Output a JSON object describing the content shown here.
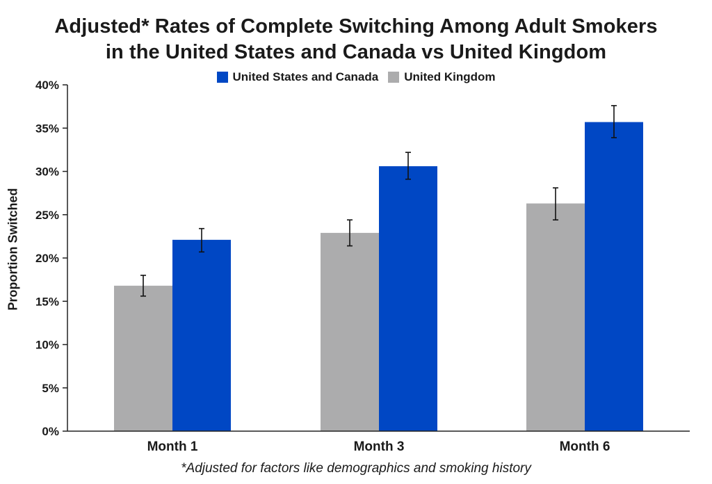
{
  "chart_data": {
    "type": "bar",
    "title": [
      "Adjusted* Rates of Complete Switching Among Adult Smokers",
      "in the United States and Canada vs United Kingdom"
    ],
    "ylabel": "Proportion Switched",
    "xlabel": "",
    "footnote": "*Adjusted for factors like demographics and smoking history",
    "categories": [
      "Month 1",
      "Month 3",
      "Month 6"
    ],
    "ylim": [
      0,
      40
    ],
    "yticks": [
      0,
      5,
      10,
      15,
      20,
      25,
      30,
      35,
      40
    ],
    "ytick_labels": [
      "0%",
      "5%",
      "10%",
      "15%",
      "20%",
      "25%",
      "30%",
      "35%",
      "40%"
    ],
    "legend_position": "top-center",
    "grid": false,
    "series": [
      {
        "name": "United Kingdom",
        "color": "#acacad",
        "values": [
          16.8,
          22.9,
          26.3
        ],
        "error_low": [
          15.6,
          21.4,
          24.4
        ],
        "error_high": [
          18.0,
          24.4,
          28.1
        ]
      },
      {
        "name": "United States and Canada",
        "color": "#0047c4",
        "values": [
          22.1,
          30.6,
          35.7
        ],
        "error_low": [
          20.7,
          29.1,
          33.9
        ],
        "error_high": [
          23.4,
          32.2,
          37.6
        ]
      }
    ],
    "legend_order": [
      1,
      0
    ]
  }
}
